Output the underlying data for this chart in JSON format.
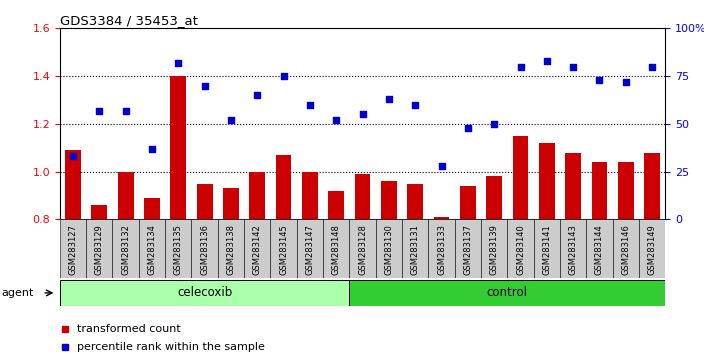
{
  "title": "GDS3384 / 35453_at",
  "categories": [
    "GSM283127",
    "GSM283129",
    "GSM283132",
    "GSM283134",
    "GSM283135",
    "GSM283136",
    "GSM283138",
    "GSM283142",
    "GSM283145",
    "GSM283147",
    "GSM283148",
    "GSM283128",
    "GSM283130",
    "GSM283131",
    "GSM283133",
    "GSM283137",
    "GSM283139",
    "GSM283140",
    "GSM283141",
    "GSM283143",
    "GSM283144",
    "GSM283146",
    "GSM283149"
  ],
  "bar_values": [
    1.09,
    0.86,
    1.0,
    0.89,
    1.4,
    0.95,
    0.93,
    1.0,
    1.07,
    1.0,
    0.92,
    0.99,
    0.96,
    0.95,
    0.81,
    0.94,
    0.98,
    1.15,
    1.12,
    1.08,
    1.04,
    1.04,
    1.08
  ],
  "percentile_values": [
    33,
    57,
    57,
    37,
    82,
    70,
    52,
    65,
    75,
    60,
    52,
    55,
    63,
    60,
    28,
    48,
    50,
    80,
    83,
    80,
    73,
    72,
    80
  ],
  "bar_color": "#cc0000",
  "point_color": "#0000cc",
  "ylim_left": [
    0.8,
    1.6
  ],
  "ylim_right": [
    0,
    100
  ],
  "yticks_left": [
    0.8,
    1.0,
    1.2,
    1.4,
    1.6
  ],
  "yticks_right": [
    0,
    25,
    50,
    75,
    100
  ],
  "ytick_labels_right": [
    "0",
    "25",
    "50",
    "75",
    "100%"
  ],
  "celecoxib_count": 11,
  "control_count": 12,
  "celecoxib_label": "celecoxib",
  "control_label": "control",
  "agent_label": "agent",
  "legend_bar_label": "transformed count",
  "legend_point_label": "percentile rank within the sample",
  "celecoxib_color": "#aaffaa",
  "control_color": "#33cc33",
  "background_color": "#ffffff",
  "dotted_line_color": "#000000",
  "gray_color": "#cccccc"
}
